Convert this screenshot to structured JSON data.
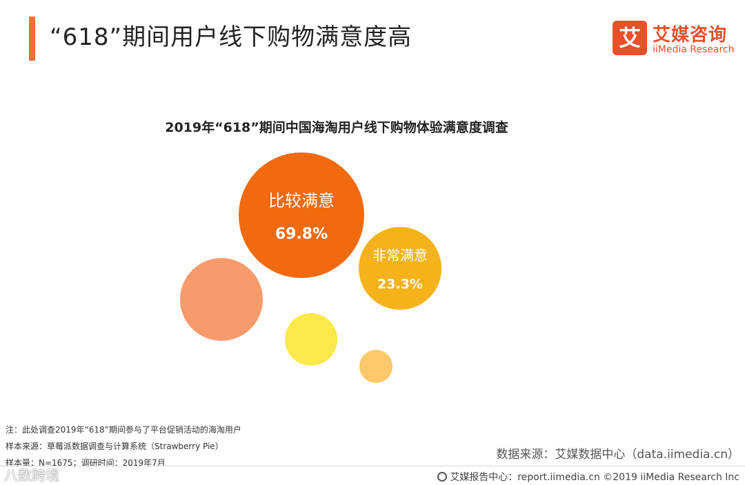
{
  "header": {
    "title": "“618”期间用户线下购物满意度高",
    "accent_color": "#f07033"
  },
  "logo": {
    "mark": "艾",
    "name_cn": "艾媒咨询",
    "name_en": "iiMedia Research",
    "color": "#e8502a"
  },
  "chart_data": {
    "type": "bubble",
    "title": "2019年“618”期间中国海淘用户线下购物体验满意度调查",
    "unit": "%",
    "labeled_bubbles": [
      {
        "name": "比较满意",
        "value": 69.8,
        "value_label": "69.8%",
        "color": "#f26a0f"
      },
      {
        "name": "非常满意",
        "value": 23.3,
        "value_label": "23.3%",
        "color": "#f5b21a"
      }
    ],
    "unlabeled_bubbles": [
      {
        "color": "#f79a6c"
      },
      {
        "color": "#fbe84a"
      },
      {
        "color": "#fbc96a"
      }
    ]
  },
  "notes": {
    "note": "注：此处调查2019年“618”期间参与了平台促销活动的海淘用户",
    "sample_source": "样本来源：草莓派数据调查与计算系统（Strawberry Pie）",
    "sample_size": "样本量：N=1675；调研时间：2019年7月"
  },
  "source": "数据来源：艾媒数据中心（data.iimedia.cn）",
  "footer": "艾媒报告中心：report.iimedia.cn ©2019 iiMedia Research Inc",
  "watermark": "八数跨境"
}
